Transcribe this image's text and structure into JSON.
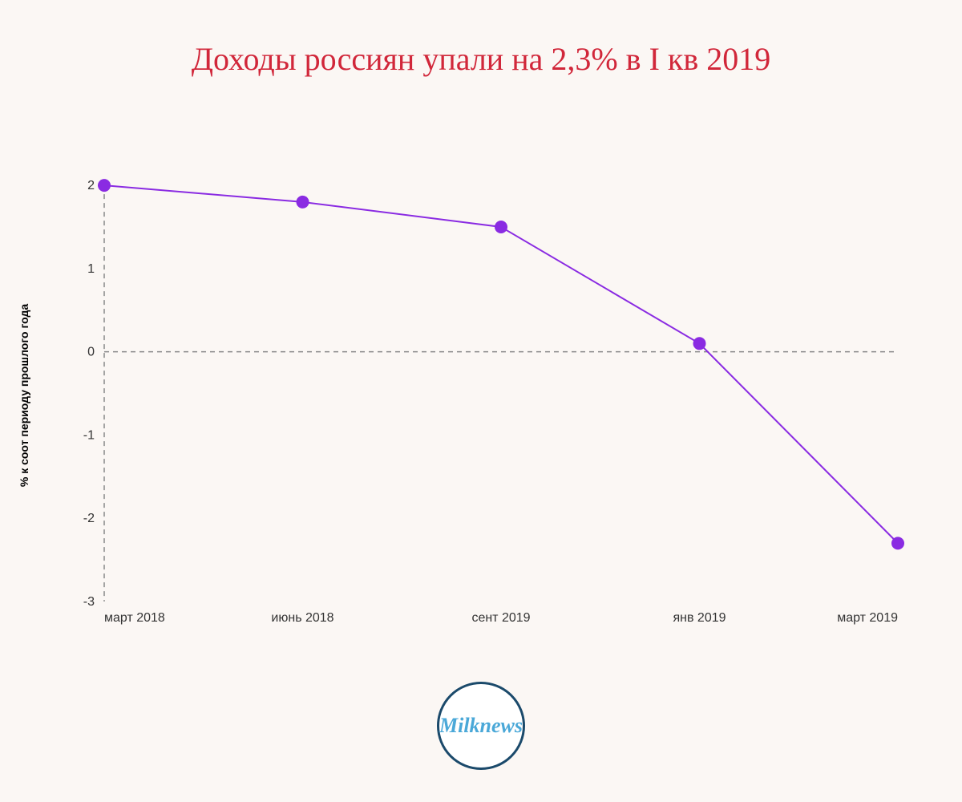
{
  "title": "Доходы россиян упали на 2,3% в I кв 2019",
  "ylabel": "% к соот периоду прошлого года",
  "logo_text": "Milknews",
  "chart": {
    "type": "line",
    "background_color": "#fbf7f4",
    "title_color": "#d1273a",
    "title_fontsize": 40,
    "line_color": "#8a2be2",
    "marker_color": "#8a2be2",
    "marker_radius": 8,
    "line_width": 2,
    "axis_color": "#666666",
    "zero_line_color": "#888888",
    "dash_pattern": "6,5",
    "ylabel_fontsize": 14,
    "tick_fontsize": 16,
    "x_labels": [
      "март 2018",
      "июнь 2018",
      "сент 2019",
      "янв 2019",
      "март 2019"
    ],
    "y_ticks": [
      -3,
      -2,
      -1,
      0,
      1,
      2
    ],
    "ylim": [
      -3,
      2.3
    ],
    "values": [
      2.0,
      1.8,
      1.5,
      0.1,
      -2.3
    ],
    "logo_border_color": "#1b4a6b",
    "logo_bg_color": "#ffffff",
    "logo_text_color": "#4aa8d8"
  }
}
